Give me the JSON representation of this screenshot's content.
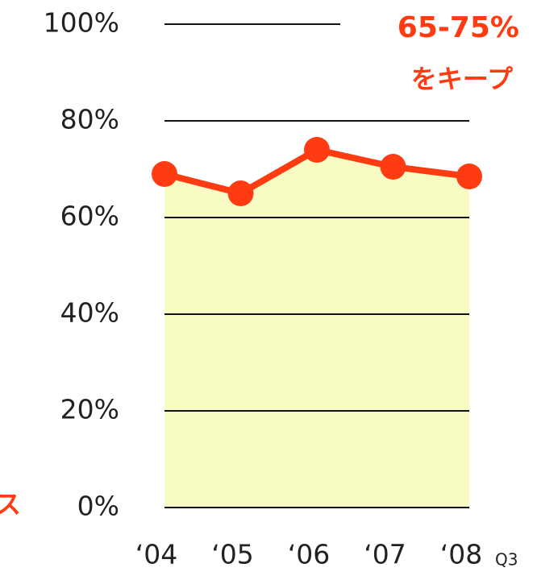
{
  "chart_data": {
    "type": "line",
    "annotations": [
      "65-75%",
      "をキープ",
      "ス",
      "Q3"
    ],
    "categories": [
      "‘04",
      "‘05",
      "‘06",
      "‘07",
      "‘08"
    ],
    "series": [
      {
        "color": "#ff3b12",
        "values": [
          69,
          65,
          74,
          70.5,
          68.5
        ]
      }
    ],
    "area_color": "#f8fbc4",
    "ylim": [
      0,
      100
    ],
    "yticks": [
      {
        "value": 0,
        "label": "0%"
      },
      {
        "value": 20,
        "label": "20%"
      },
      {
        "value": 40,
        "label": "40%"
      },
      {
        "value": 60,
        "label": "60%"
      },
      {
        "value": 80,
        "label": "80%"
      },
      {
        "value": 100,
        "label": "100%"
      }
    ],
    "grid": true
  }
}
